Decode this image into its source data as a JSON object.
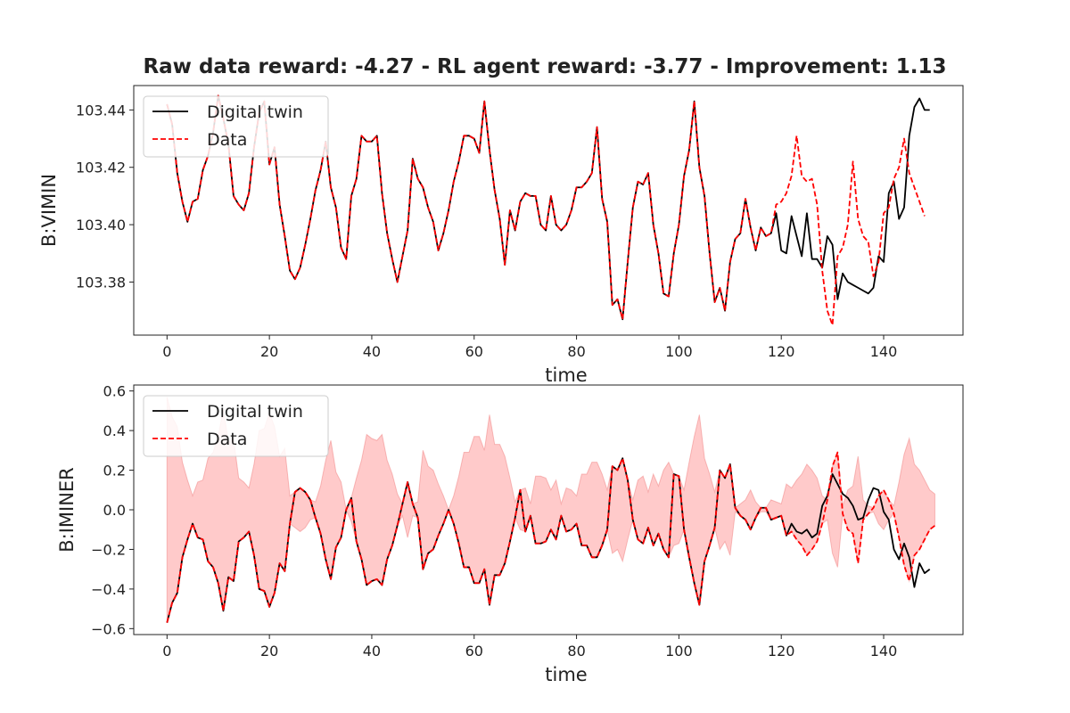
{
  "title": "Raw data reward: -4.27 - RL agent reward: -3.77 - Improvement: 1.13",
  "colors": {
    "digital_twin": "#000000",
    "data": "#ff0000",
    "band_fill": "#ffb3b3",
    "axes": "#222222"
  },
  "chart_data": [
    {
      "type": "line",
      "xlabel": "time",
      "ylabel": "B:VIMIN",
      "xlim": [
        -6.5,
        155.5
      ],
      "ylim": [
        103.3615,
        103.4485
      ],
      "xticks": [
        0,
        20,
        40,
        60,
        80,
        100,
        120,
        140
      ],
      "yticks": [
        103.38,
        103.4,
        103.42,
        103.44
      ],
      "ytick_labels": [
        "103.38",
        "103.40",
        "103.42",
        "103.44"
      ],
      "legend": {
        "position": "top-left",
        "entries": [
          "Digital twin",
          "Data"
        ]
      },
      "series": [
        {
          "name": "Digital twin",
          "style": "solid",
          "color": "#000000",
          "values": [
            103.442,
            103.435,
            103.418,
            103.408,
            103.401,
            103.408,
            103.409,
            103.419,
            103.424,
            103.432,
            103.445,
            103.437,
            103.428,
            103.41,
            103.407,
            103.405,
            103.411,
            103.427,
            103.439,
            103.443,
            103.421,
            103.427,
            103.407,
            103.396,
            103.384,
            103.381,
            103.385,
            103.393,
            103.402,
            103.412,
            103.419,
            103.429,
            103.413,
            103.406,
            103.392,
            103.388,
            103.41,
            103.416,
            103.431,
            103.429,
            103.429,
            103.431,
            103.411,
            103.397,
            103.388,
            103.38,
            103.389,
            103.398,
            103.423,
            103.416,
            103.413,
            103.406,
            103.401,
            103.391,
            103.397,
            103.405,
            103.415,
            103.422,
            103.431,
            103.431,
            103.43,
            103.425,
            103.443,
            103.426,
            103.412,
            103.402,
            103.386,
            103.405,
            103.398,
            103.408,
            103.411,
            103.41,
            103.41,
            103.4,
            103.398,
            103.41,
            103.4,
            103.398,
            103.4,
            103.405,
            103.413,
            103.413,
            103.415,
            103.418,
            103.434,
            103.409,
            103.401,
            103.372,
            103.374,
            103.367,
            103.387,
            103.406,
            103.415,
            103.414,
            103.418,
            103.4,
            103.39,
            103.376,
            103.375,
            103.39,
            103.4,
            103.417,
            103.426,
            103.443,
            103.42,
            103.41,
            103.39,
            103.373,
            103.378,
            103.37,
            103.387,
            103.395,
            103.397,
            103.409,
            103.399,
            103.391,
            103.399,
            103.396,
            103.397,
            103.404,
            103.391,
            103.39,
            103.403,
            103.396,
            103.389,
            103.404,
            103.388,
            103.388,
            103.385,
            103.396,
            103.393,
            103.374,
            103.383,
            103.38,
            103.379,
            103.378,
            103.377,
            103.376,
            103.378,
            103.389,
            103.387,
            103.411,
            103.415,
            103.402,
            103.406,
            103.431,
            103.441,
            103.444,
            103.44,
            103.44
          ]
        },
        {
          "name": "Data",
          "style": "dashed",
          "color": "#ff0000",
          "values": [
            103.442,
            103.435,
            103.418,
            103.408,
            103.401,
            103.408,
            103.409,
            103.419,
            103.424,
            103.432,
            103.445,
            103.437,
            103.428,
            103.41,
            103.407,
            103.405,
            103.411,
            103.427,
            103.439,
            103.443,
            103.421,
            103.427,
            103.407,
            103.396,
            103.384,
            103.381,
            103.385,
            103.393,
            103.402,
            103.412,
            103.419,
            103.429,
            103.413,
            103.406,
            103.392,
            103.388,
            103.41,
            103.416,
            103.431,
            103.429,
            103.429,
            103.431,
            103.411,
            103.397,
            103.388,
            103.38,
            103.389,
            103.398,
            103.423,
            103.416,
            103.413,
            103.406,
            103.401,
            103.391,
            103.397,
            103.405,
            103.415,
            103.422,
            103.431,
            103.431,
            103.43,
            103.425,
            103.443,
            103.426,
            103.412,
            103.402,
            103.386,
            103.405,
            103.398,
            103.408,
            103.411,
            103.41,
            103.41,
            103.4,
            103.398,
            103.41,
            103.4,
            103.398,
            103.4,
            103.405,
            103.413,
            103.413,
            103.415,
            103.418,
            103.434,
            103.409,
            103.401,
            103.372,
            103.374,
            103.367,
            103.387,
            103.406,
            103.415,
            103.414,
            103.418,
            103.4,
            103.39,
            103.376,
            103.375,
            103.39,
            103.4,
            103.417,
            103.426,
            103.443,
            103.42,
            103.41,
            103.39,
            103.373,
            103.378,
            103.37,
            103.387,
            103.395,
            103.397,
            103.409,
            103.399,
            103.391,
            103.399,
            103.396,
            103.397,
            103.407,
            103.408,
            103.411,
            103.417,
            103.431,
            103.417,
            103.415,
            103.416,
            103.407,
            103.384,
            103.37,
            103.365,
            103.389,
            103.392,
            103.4,
            103.422,
            103.402,
            103.396,
            103.394,
            103.382,
            103.387,
            103.404,
            103.406,
            103.416,
            103.42,
            103.43,
            103.418,
            103.413,
            103.408,
            103.403
          ]
        }
      ]
    },
    {
      "type": "line",
      "xlabel": "time",
      "ylabel": "B:IMINER",
      "xlim": [
        -6.5,
        155.5
      ],
      "ylim": [
        -0.63,
        0.63
      ],
      "xticks": [
        0,
        20,
        40,
        60,
        80,
        100,
        120,
        140
      ],
      "yticks": [
        -0.6,
        -0.4,
        -0.2,
        0.0,
        0.2,
        0.4,
        0.6
      ],
      "ytick_labels": [
        "−0.6",
        "−0.4",
        "−0.2",
        "0.0",
        "0.2",
        "0.4",
        "0.6"
      ],
      "legend": {
        "position": "top-left",
        "entries": [
          "Digital twin",
          "Data"
        ]
      },
      "band": {
        "color": "#ffb3b3",
        "description_upper_equals_negative_of_data": true
      },
      "series": [
        {
          "name": "Digital twin",
          "style": "solid",
          "color": "#000000",
          "values": [
            -0.57,
            -0.47,
            -0.42,
            -0.24,
            -0.15,
            -0.07,
            -0.14,
            -0.15,
            -0.26,
            -0.29,
            -0.37,
            -0.51,
            -0.34,
            -0.36,
            -0.16,
            -0.14,
            -0.11,
            -0.23,
            -0.4,
            -0.41,
            -0.49,
            -0.42,
            -0.27,
            -0.31,
            -0.07,
            0.09,
            0.11,
            0.09,
            0.05,
            -0.04,
            -0.12,
            -0.25,
            -0.35,
            -0.19,
            -0.14,
            0.0,
            0.06,
            -0.16,
            -0.25,
            -0.38,
            -0.36,
            -0.35,
            -0.38,
            -0.25,
            -0.18,
            -0.08,
            0.03,
            0.14,
            0.03,
            -0.04,
            -0.3,
            -0.22,
            -0.2,
            -0.13,
            -0.07,
            0.0,
            -0.07,
            -0.17,
            -0.29,
            -0.29,
            -0.37,
            -0.37,
            -0.3,
            -0.48,
            -0.33,
            -0.33,
            -0.27,
            -0.16,
            -0.04,
            0.1,
            -0.11,
            -0.03,
            -0.17,
            -0.17,
            -0.16,
            -0.1,
            -0.15,
            -0.03,
            -0.11,
            -0.1,
            -0.07,
            -0.18,
            -0.18,
            -0.24,
            -0.24,
            -0.18,
            -0.1,
            0.22,
            0.2,
            0.26,
            0.15,
            -0.05,
            -0.15,
            -0.17,
            -0.09,
            -0.18,
            -0.12,
            -0.2,
            -0.24,
            0.18,
            0.17,
            -0.1,
            -0.24,
            -0.37,
            -0.48,
            -0.26,
            -0.18,
            -0.09,
            0.2,
            0.16,
            0.23,
            0.01,
            -0.03,
            -0.05,
            -0.1,
            -0.04,
            0.01,
            0.01,
            -0.05,
            -0.04,
            -0.03,
            -0.13,
            -0.07,
            -0.11,
            -0.12,
            -0.1,
            -0.14,
            -0.12,
            0.02,
            0.07,
            0.18,
            0.13,
            0.08,
            0.06,
            0.02,
            -0.05,
            -0.04,
            0.05,
            0.11,
            0.1,
            -0.01,
            -0.05,
            -0.2,
            -0.25,
            -0.17,
            -0.24,
            -0.39,
            -0.27,
            -0.32,
            -0.3
          ]
        },
        {
          "name": "Data",
          "style": "dashed",
          "color": "#ff0000",
          "values": [
            -0.57,
            -0.47,
            -0.42,
            -0.24,
            -0.15,
            -0.07,
            -0.14,
            -0.15,
            -0.26,
            -0.29,
            -0.37,
            -0.51,
            -0.34,
            -0.36,
            -0.16,
            -0.14,
            -0.11,
            -0.23,
            -0.4,
            -0.41,
            -0.49,
            -0.42,
            -0.27,
            -0.31,
            -0.07,
            0.09,
            0.11,
            0.09,
            0.05,
            -0.04,
            -0.12,
            -0.25,
            -0.35,
            -0.19,
            -0.14,
            0.0,
            0.06,
            -0.16,
            -0.25,
            -0.38,
            -0.36,
            -0.35,
            -0.38,
            -0.25,
            -0.18,
            -0.08,
            0.03,
            0.14,
            0.03,
            -0.04,
            -0.3,
            -0.22,
            -0.2,
            -0.13,
            -0.07,
            0.0,
            -0.07,
            -0.17,
            -0.29,
            -0.29,
            -0.37,
            -0.37,
            -0.3,
            -0.48,
            -0.33,
            -0.33,
            -0.27,
            -0.16,
            -0.04,
            0.1,
            -0.11,
            -0.03,
            -0.17,
            -0.17,
            -0.16,
            -0.1,
            -0.15,
            -0.03,
            -0.11,
            -0.1,
            -0.07,
            -0.18,
            -0.18,
            -0.24,
            -0.24,
            -0.18,
            -0.1,
            0.22,
            0.2,
            0.26,
            0.15,
            -0.05,
            -0.15,
            -0.17,
            -0.09,
            -0.18,
            -0.12,
            -0.2,
            -0.24,
            0.18,
            0.17,
            -0.1,
            -0.24,
            -0.37,
            -0.48,
            -0.26,
            -0.18,
            -0.09,
            0.2,
            0.16,
            0.23,
            0.01,
            -0.03,
            -0.05,
            -0.1,
            -0.04,
            0.01,
            0.01,
            -0.05,
            -0.04,
            -0.03,
            -0.13,
            -0.11,
            -0.15,
            -0.18,
            -0.23,
            -0.2,
            -0.16,
            -0.07,
            0.05,
            0.22,
            0.29,
            -0.02,
            -0.1,
            -0.12,
            -0.27,
            -0.05,
            -0.02,
            0.01,
            0.07,
            0.1,
            0.05,
            -0.02,
            -0.14,
            -0.28,
            -0.36,
            -0.23,
            -0.2,
            -0.15,
            -0.1,
            -0.08
          ]
        }
      ]
    }
  ]
}
